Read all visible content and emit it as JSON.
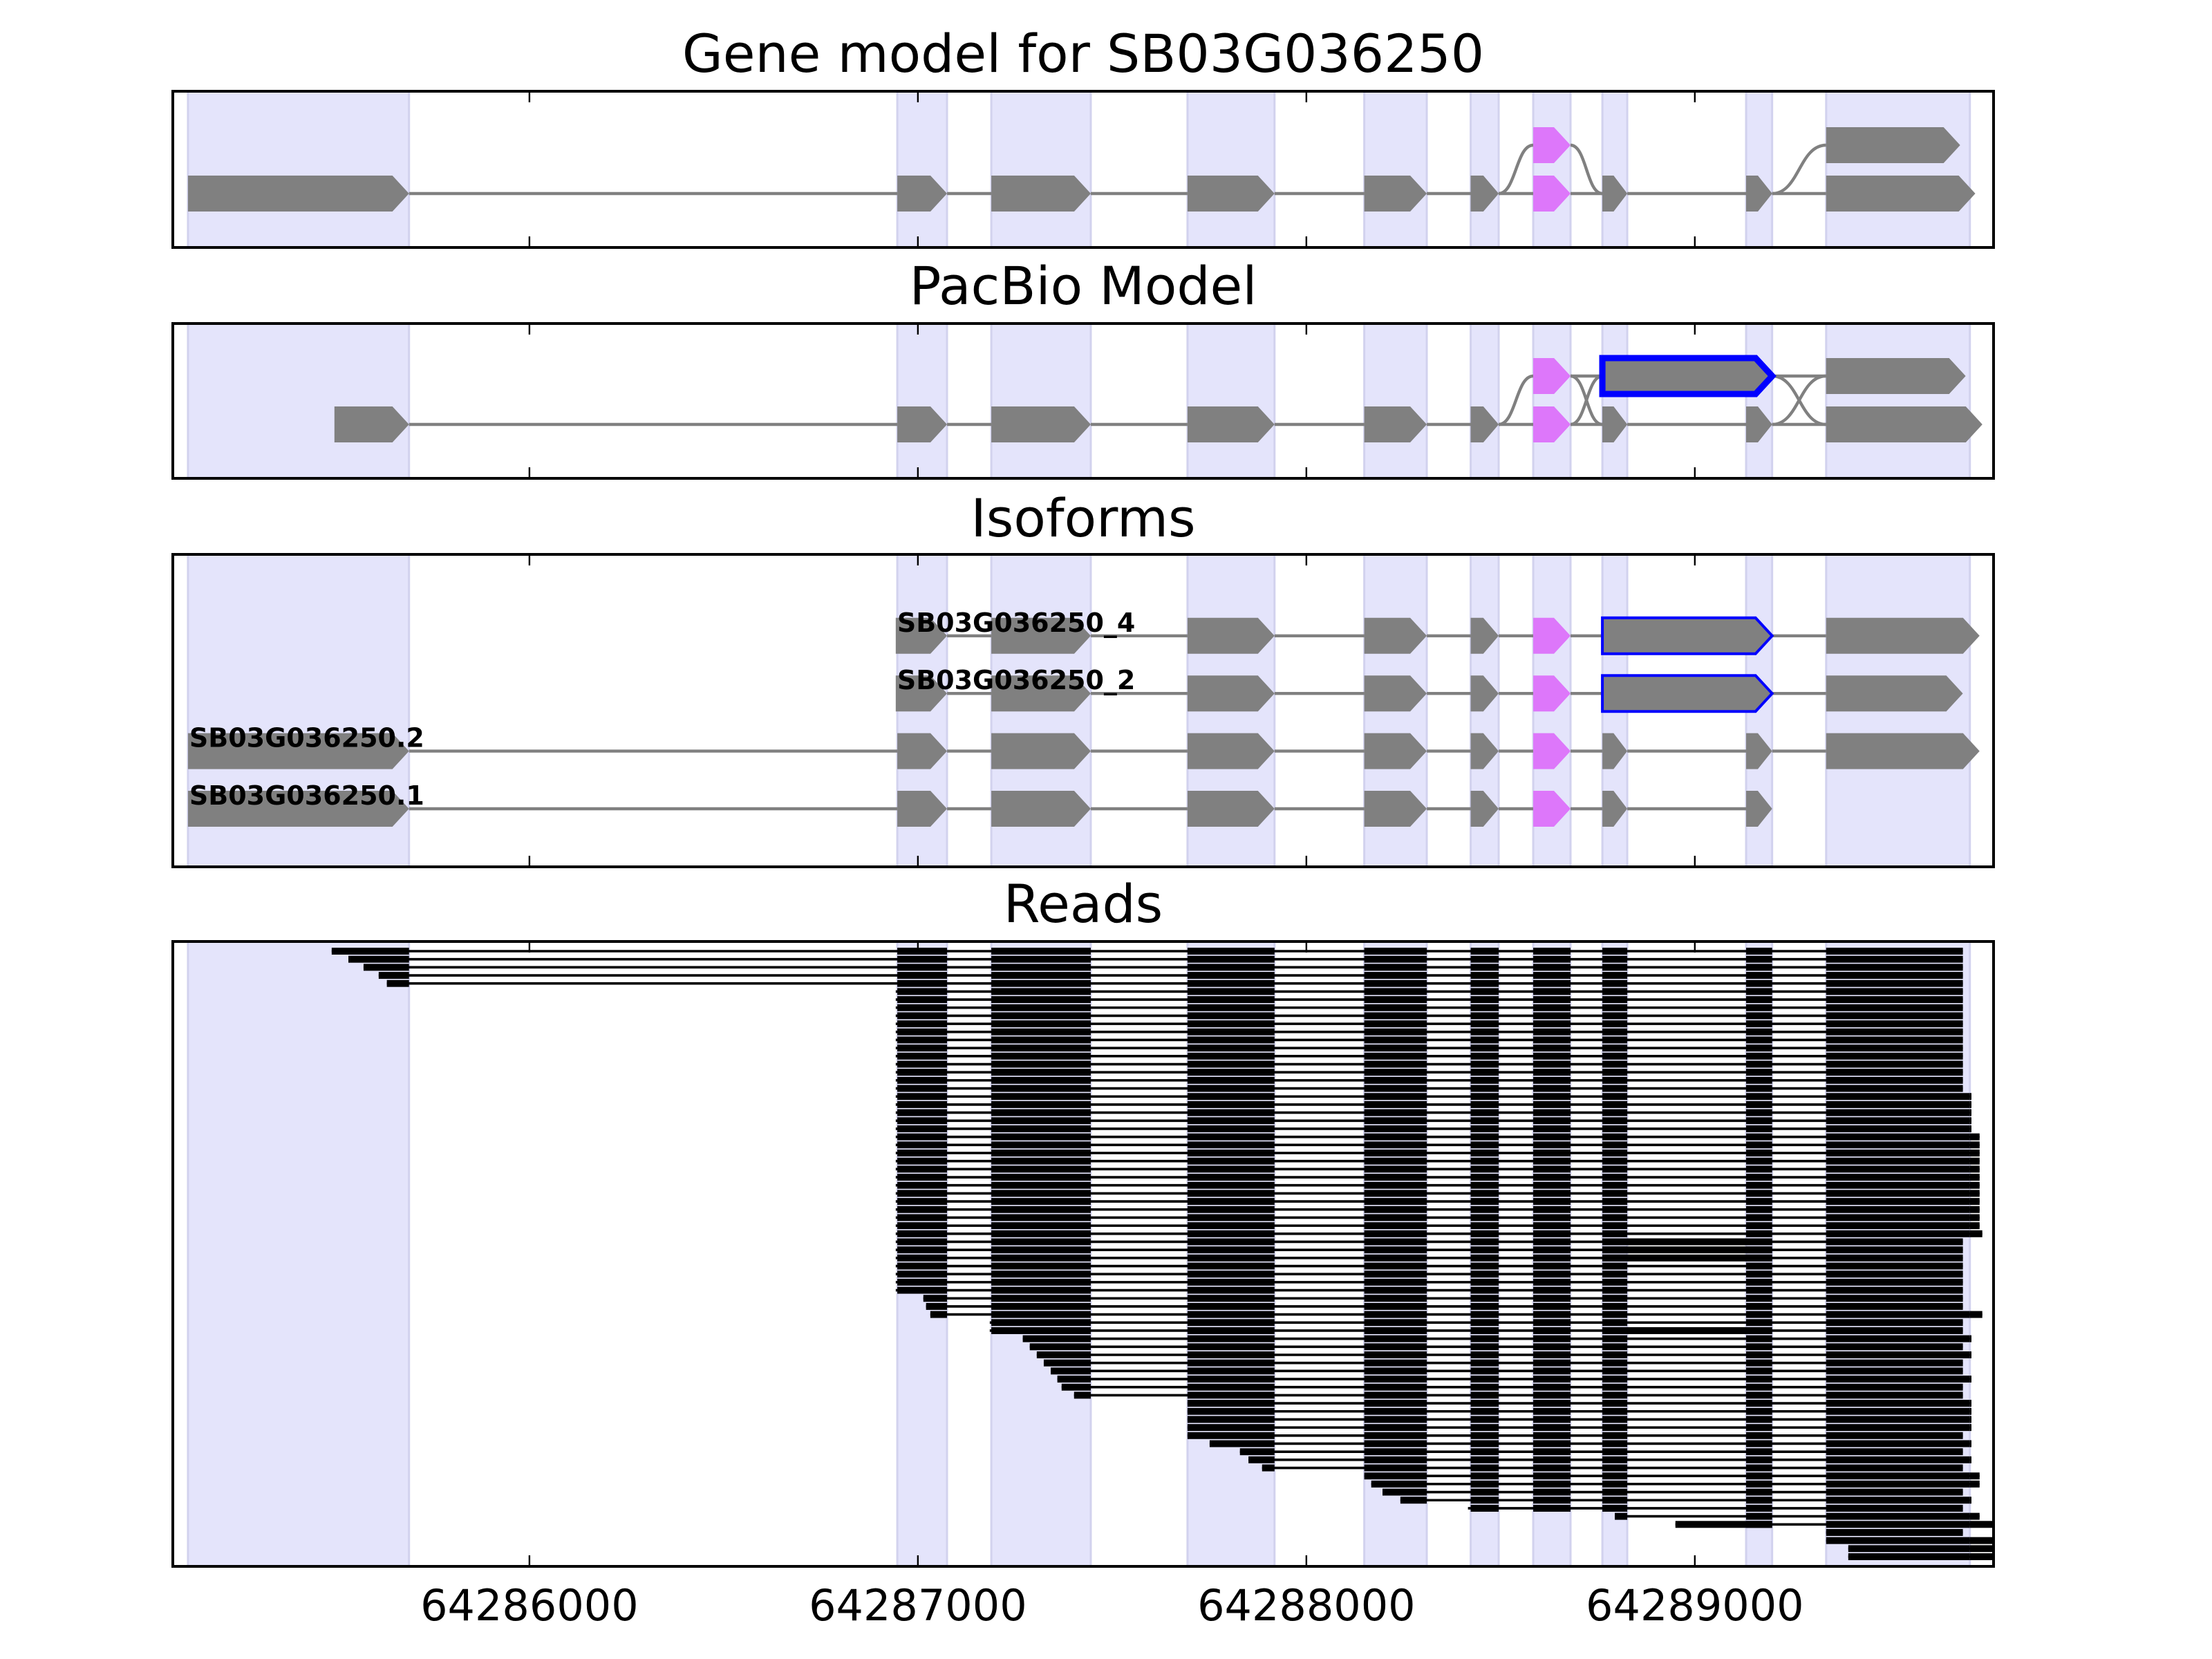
{
  "chart_data": {
    "type": "gene-track",
    "xaxis": {
      "range": [
        64285082,
        64289769
      ],
      "ticks": [
        64286000,
        64287000,
        64288000,
        64289000
      ],
      "tick_labels": [
        "64286000",
        "64287000",
        "64288000",
        "64289000"
      ]
    },
    "colors": {
      "exon": "#808080",
      "alt_exon": "#dd77fa",
      "retained_outline": "#0000ff",
      "shade": "#e4e4fb",
      "shade_edge": "#d2d2ee",
      "intron": "#808080",
      "read": "#000000"
    },
    "exon_regions": [
      [
        64285121,
        64285690
      ],
      [
        64286947,
        64287075
      ],
      [
        64287189,
        64287445
      ],
      [
        64287694,
        64287918
      ],
      [
        64288149,
        64288310
      ],
      [
        64288423,
        64288495
      ],
      [
        64288584,
        64288680
      ],
      [
        64288762,
        64288826
      ],
      [
        64289132,
        64289199
      ],
      [
        64289338,
        64289708
      ]
    ],
    "panels": [
      {
        "title": "Gene model for SB03G036250",
        "transcripts": [
          {
            "exons": [
              [
                64285121,
                64285690,
                0,
                "gray"
              ],
              [
                64286947,
                64287075,
                0,
                "gray"
              ],
              [
                64287189,
                64287445,
                0,
                "gray"
              ],
              [
                64287694,
                64287918,
                0,
                "gray"
              ],
              [
                64288149,
                64288310,
                0,
                "gray"
              ],
              [
                64288423,
                64288495,
                0,
                "gray"
              ],
              [
                64288584,
                64288680,
                0,
                "pink"
              ],
              [
                64288762,
                64288826,
                0,
                "gray"
              ],
              [
                64289132,
                64289199,
                0,
                "gray"
              ],
              [
                64289338,
                64289722,
                0,
                "gray"
              ]
            ]
          },
          {
            "exons": [
              [
                64288423,
                64288495,
                0,
                "gray"
              ],
              [
                64288584,
                64288680,
                1,
                "pink"
              ],
              [
                64288762,
                64288826,
                0,
                "gray"
              ]
            ]
          },
          {
            "exons": [
              [
                64289132,
                64289199,
                0,
                "gray"
              ],
              [
                64289338,
                64289683,
                1,
                "gray"
              ]
            ]
          }
        ]
      },
      {
        "title": "PacBio Model",
        "transcripts": [
          {
            "exons": [
              [
                64285498,
                64285690,
                0,
                "gray"
              ],
              [
                64286947,
                64287075,
                0,
                "gray"
              ],
              [
                64287189,
                64287445,
                0,
                "gray"
              ],
              [
                64287694,
                64287918,
                0,
                "gray"
              ],
              [
                64288149,
                64288310,
                0,
                "gray"
              ],
              [
                64288423,
                64288495,
                0,
                "gray"
              ],
              [
                64288584,
                64288680,
                0,
                "pink"
              ],
              [
                64288762,
                64288826,
                0,
                "gray"
              ],
              [
                64289132,
                64289199,
                0,
                "gray"
              ],
              [
                64289338,
                64289740,
                0,
                "gray"
              ]
            ]
          },
          {
            "exons": [
              [
                64288423,
                64288495,
                0,
                "gray"
              ],
              [
                64288584,
                64288680,
                1,
                "pink"
              ],
              [
                64288762,
                64288826,
                0,
                "gray"
              ]
            ]
          },
          {
            "exons": [
              [
                64288584,
                64288680,
                0,
                "pink"
              ],
              [
                64288762,
                64289199,
                1,
                "outlined"
              ],
              [
                64289338,
                64289740,
                0,
                "gray"
              ]
            ]
          },
          {
            "exons": [
              [
                64288584,
                64288680,
                1,
                "pink"
              ],
              [
                64288762,
                64289199,
                1,
                "outlined"
              ],
              [
                64289338,
                64289697,
                1,
                "gray"
              ]
            ]
          },
          {
            "exons": [
              [
                64289132,
                64289199,
                0,
                "gray"
              ],
              [
                64289338,
                64289697,
                1,
                "gray"
              ]
            ]
          }
        ]
      },
      {
        "title": "Isoforms",
        "transcripts": [
          {
            "label": "SB03G036250_4",
            "exons": [
              [
                64286943,
                64287075,
                3,
                "gray"
              ],
              [
                64287189,
                64287445,
                3,
                "gray"
              ],
              [
                64287694,
                64287918,
                3,
                "gray"
              ],
              [
                64288149,
                64288310,
                3,
                "gray"
              ],
              [
                64288423,
                64288495,
                3,
                "gray"
              ],
              [
                64288584,
                64288680,
                3,
                "pink"
              ],
              [
                64288762,
                64289199,
                3,
                "outlined"
              ],
              [
                64289338,
                64289733,
                3,
                "gray"
              ]
            ]
          },
          {
            "label": "SB03G036250_2",
            "exons": [
              [
                64286943,
                64287075,
                2,
                "gray"
              ],
              [
                64287189,
                64287445,
                2,
                "gray"
              ],
              [
                64287694,
                64287918,
                2,
                "gray"
              ],
              [
                64288149,
                64288310,
                2,
                "gray"
              ],
              [
                64288423,
                64288495,
                2,
                "gray"
              ],
              [
                64288584,
                64288680,
                2,
                "pink"
              ],
              [
                64288762,
                64289199,
                2,
                "outlined"
              ],
              [
                64289338,
                64289690,
                2,
                "gray"
              ]
            ]
          },
          {
            "label": "SB03G036250.2",
            "exons": [
              [
                64285121,
                64285690,
                1,
                "gray"
              ],
              [
                64286947,
                64287075,
                1,
                "gray"
              ],
              [
                64287189,
                64287445,
                1,
                "gray"
              ],
              [
                64287694,
                64287918,
                1,
                "gray"
              ],
              [
                64288149,
                64288310,
                1,
                "gray"
              ],
              [
                64288423,
                64288495,
                1,
                "gray"
              ],
              [
                64288584,
                64288680,
                1,
                "pink"
              ],
              [
                64288762,
                64288826,
                1,
                "gray"
              ],
              [
                64289132,
                64289199,
                1,
                "gray"
              ],
              [
                64289338,
                64289733,
                1,
                "gray"
              ]
            ]
          },
          {
            "label": "SB03G036250.1",
            "exons": [
              [
                64285121,
                64285690,
                0,
                "gray"
              ],
              [
                64286947,
                64287075,
                0,
                "gray"
              ],
              [
                64287189,
                64287445,
                0,
                "gray"
              ],
              [
                64287694,
                64287918,
                0,
                "gray"
              ],
              [
                64288149,
                64288310,
                0,
                "gray"
              ],
              [
                64288423,
                64288495,
                0,
                "gray"
              ],
              [
                64288584,
                64288680,
                0,
                "pink"
              ],
              [
                64288762,
                64288826,
                0,
                "gray"
              ],
              [
                64289132,
                64289199,
                0,
                "gray"
              ]
            ]
          }
        ]
      },
      {
        "title": "Reads",
        "reads": [
          [
            64285491,
            64289690,
            0
          ],
          [
            64285534,
            64289690,
            0
          ],
          [
            64285573,
            64289690,
            0
          ],
          [
            64285612,
            64289690,
            0
          ],
          [
            64285633,
            64289690,
            0
          ],
          [
            64286943,
            64289690,
            0
          ],
          [
            64286943,
            64289690,
            0
          ],
          [
            64286943,
            64289690,
            0
          ],
          [
            64286943,
            64289690,
            0
          ],
          [
            64286943,
            64289690,
            0
          ],
          [
            64286943,
            64289690,
            0
          ],
          [
            64286943,
            64289690,
            0
          ],
          [
            64286943,
            64289690,
            0
          ],
          [
            64286943,
            64289690,
            0
          ],
          [
            64286943,
            64289690,
            0
          ],
          [
            64286943,
            64289690,
            0
          ],
          [
            64286943,
            64289690,
            0
          ],
          [
            64286943,
            64289690,
            0
          ],
          [
            64286943,
            64289712,
            0
          ],
          [
            64286943,
            64289712,
            0
          ],
          [
            64286943,
            64289712,
            0
          ],
          [
            64286943,
            64289712,
            0
          ],
          [
            64286943,
            64289712,
            0
          ],
          [
            64286943,
            64289733,
            0
          ],
          [
            64286943,
            64289733,
            0
          ],
          [
            64286943,
            64289733,
            0
          ],
          [
            64286943,
            64289733,
            0
          ],
          [
            64286943,
            64289733,
            0
          ],
          [
            64286943,
            64289733,
            0
          ],
          [
            64286943,
            64289733,
            0
          ],
          [
            64286943,
            64289733,
            0
          ],
          [
            64286943,
            64289733,
            0
          ],
          [
            64286943,
            64289733,
            0
          ],
          [
            64286943,
            64289733,
            0
          ],
          [
            64286943,
            64289733,
            0
          ],
          [
            64286943,
            64289740,
            0
          ],
          [
            64286943,
            64289690,
            1
          ],
          [
            64286943,
            64289690,
            1
          ],
          [
            64286943,
            64289690,
            1
          ],
          [
            64286943,
            64289690,
            0
          ],
          [
            64286943,
            64289690,
            0
          ],
          [
            64286943,
            64289690,
            0
          ],
          [
            64286943,
            64289690,
            0
          ],
          [
            64287014,
            64289690,
            0
          ],
          [
            64287021,
            64289690,
            0
          ],
          [
            64287032,
            64289740,
            0
          ],
          [
            64287185,
            64289690,
            0
          ],
          [
            64287185,
            64289690,
            1
          ],
          [
            64287270,
            64289712,
            0
          ],
          [
            64287288,
            64289690,
            0
          ],
          [
            64287306,
            64289712,
            0
          ],
          [
            64287324,
            64289690,
            0
          ],
          [
            64287342,
            64289690,
            0
          ],
          [
            64287359,
            64289712,
            0
          ],
          [
            64287370,
            64289690,
            0
          ],
          [
            64287402,
            64289690,
            0
          ],
          [
            64287694,
            64289712,
            0
          ],
          [
            64287694,
            64289712,
            0
          ],
          [
            64287694,
            64289712,
            0
          ],
          [
            64287694,
            64289712,
            0
          ],
          [
            64287694,
            64289690,
            0
          ],
          [
            64287751,
            64289712,
            0
          ],
          [
            64287829,
            64289690,
            0
          ],
          [
            64287851,
            64289712,
            0
          ],
          [
            64287886,
            64289690,
            0
          ],
          [
            64288149,
            64289733,
            0
          ],
          [
            64288167,
            64289733,
            0
          ],
          [
            64288196,
            64289690,
            0
          ],
          [
            64288242,
            64289712,
            0
          ],
          [
            64288416,
            64289690,
            0
          ],
          [
            64288794,
            64289733,
            0
          ],
          [
            64288950,
            64289769,
            1
          ],
          [
            64289338,
            64289690,
            0
          ],
          [
            64289338,
            64289769,
            0
          ],
          [
            64289395,
            64289769,
            0
          ],
          [
            64289395,
            64289769,
            0
          ]
        ]
      }
    ]
  }
}
